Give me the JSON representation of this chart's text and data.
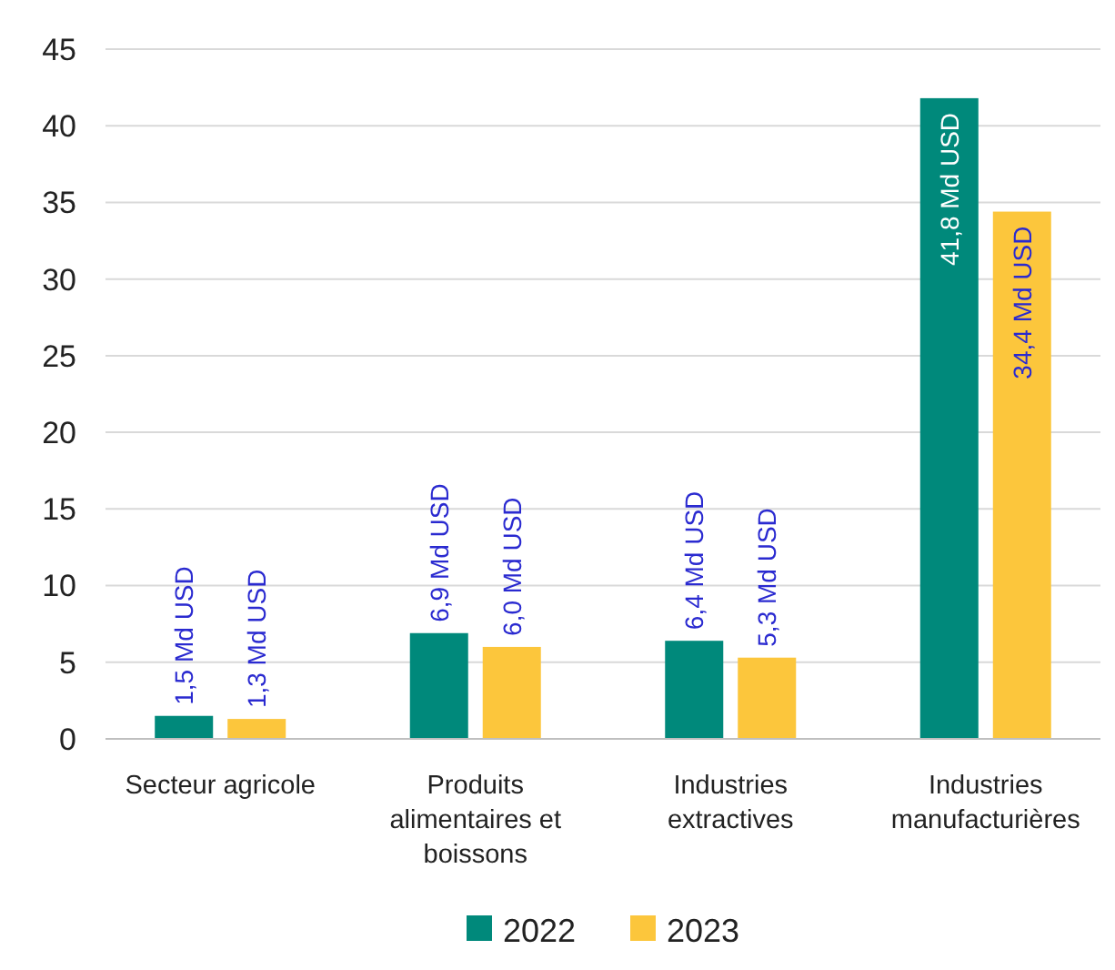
{
  "chart_data": {
    "type": "bar",
    "categories": [
      "Secteur agricole",
      "Produits alimentaires et boissons",
      "Industries extractives",
      "Industries manufacturières"
    ],
    "series": [
      {
        "name": "2022",
        "color": "#00897b",
        "values": [
          1.5,
          6.9,
          6.4,
          41.8
        ],
        "value_labels": [
          "1,5 Md USD",
          "6,9 Md USD",
          "6,4 Md USD",
          "41,8 Md USD"
        ]
      },
      {
        "name": "2023",
        "color": "#fcc63c",
        "values": [
          1.3,
          6.0,
          5.3,
          34.4
        ],
        "value_labels": [
          "1,3 Md USD",
          "6,0 Md USD",
          "5,3 Md USD",
          "34,4 Md USD"
        ]
      }
    ],
    "ylim": [
      0,
      45
    ],
    "yticks": [
      0,
      5,
      10,
      15,
      20,
      25,
      30,
      35,
      40,
      45
    ],
    "grid": "y",
    "legend": "bottom"
  }
}
